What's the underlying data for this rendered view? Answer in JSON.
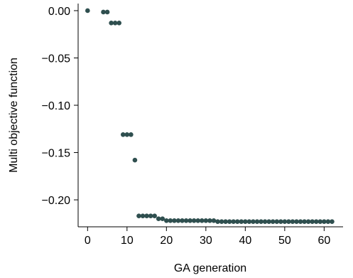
{
  "chart_data": {
    "type": "scatter",
    "title": "",
    "xlabel": "GA generation",
    "ylabel": "Multi objective function",
    "xlim": [
      -2.4,
      64.8
    ],
    "ylim": [
      -0.2285,
      0.0075
    ],
    "x_ticks": [
      0,
      10,
      20,
      30,
      40,
      50,
      60
    ],
    "x_tick_labels": [
      "0",
      "10",
      "20",
      "30",
      "40",
      "50",
      "60"
    ],
    "y_ticks": [
      0.0,
      -0.05,
      -0.1,
      -0.15,
      -0.2
    ],
    "y_tick_labels": [
      "0.00",
      "−0.05",
      "−0.10",
      "−0.15",
      "−0.20"
    ],
    "grid": false,
    "legend": "none",
    "marker_color": "#2f4f4f",
    "series": [
      {
        "x": [
          0,
          4,
          5,
          6,
          7,
          8,
          9,
          10,
          11,
          12,
          13,
          14,
          15,
          16,
          17,
          18,
          19,
          20,
          21,
          22,
          23,
          24,
          25,
          26,
          27,
          28,
          29,
          30,
          31,
          32,
          33,
          34,
          35,
          36,
          37,
          38,
          39,
          40,
          41,
          42,
          43,
          44,
          45,
          46,
          47,
          48,
          49,
          50,
          51,
          52,
          53,
          54,
          55,
          56,
          57,
          58,
          59,
          60,
          61,
          62
        ],
        "y": [
          0.0,
          -0.0015,
          -0.0015,
          -0.013,
          -0.013,
          -0.013,
          -0.131,
          -0.131,
          -0.131,
          -0.158,
          -0.217,
          -0.217,
          -0.217,
          -0.217,
          -0.217,
          -0.22,
          -0.22,
          -0.222,
          -0.222,
          -0.222,
          -0.222,
          -0.222,
          -0.222,
          -0.222,
          -0.222,
          -0.222,
          -0.222,
          -0.222,
          -0.222,
          -0.222,
          -0.223,
          -0.223,
          -0.223,
          -0.223,
          -0.223,
          -0.223,
          -0.223,
          -0.223,
          -0.223,
          -0.223,
          -0.223,
          -0.223,
          -0.223,
          -0.223,
          -0.223,
          -0.223,
          -0.223,
          -0.223,
          -0.223,
          -0.223,
          -0.223,
          -0.223,
          -0.223,
          -0.223,
          -0.223,
          -0.223,
          -0.223,
          -0.223,
          -0.223,
          -0.223
        ]
      }
    ]
  }
}
